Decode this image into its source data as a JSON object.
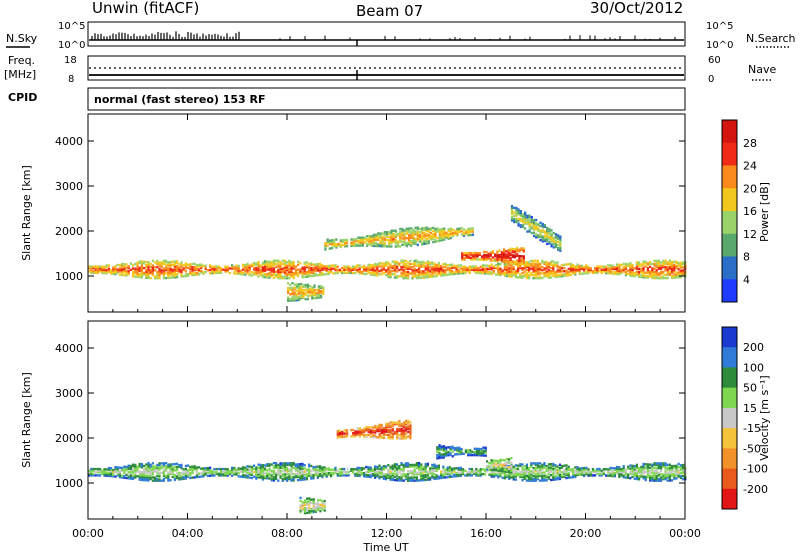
{
  "header": {
    "radar": "Unwin (fitACF)",
    "beam": "Beam 07",
    "date": "30/Oct/2012",
    "cpid_label": "CPID",
    "cpid_text": "normal (fast stereo) 153 RF"
  },
  "panels": {
    "nsky_label": "N.Sky",
    "nsearch_label": "N.Search",
    "nsky_ticks": [
      "10^5",
      "10^0"
    ],
    "nsearch_ticks": [
      "10^5",
      "10^0"
    ],
    "freq_label_1": "Freq.",
    "freq_label_2": "[MHz]",
    "freq_ticks": [
      "18",
      "8"
    ],
    "nave_label": "Nave",
    "nave_ticks": [
      "60",
      "0"
    ]
  },
  "chart_data": [
    {
      "type": "heatmap",
      "name": "power",
      "ylabel": "Slant Range [km]",
      "y_ticks": [
        "1000",
        "2000",
        "3000",
        "4000"
      ],
      "ylim": [
        200,
        4600
      ],
      "colorbar_label": "Power [dB]",
      "colorbar_ticks": [
        "4",
        "8",
        "12",
        "16",
        "20",
        "24",
        "28"
      ],
      "colors": [
        "#1e3cff",
        "#2b6ec8",
        "#5aa86c",
        "#9bd36b",
        "#f3c81e",
        "#fb8a1c",
        "#ef2a17",
        "#d4150f"
      ],
      "bands": [
        {
          "t_start": 0.0,
          "t_end": 24.0,
          "r_center_start": 1150,
          "r_center_end": 1150,
          "level": 6
        },
        {
          "t_start": 9.5,
          "t_end": 15.5,
          "r_center_start": 1700,
          "r_center_end": 2000,
          "level": 5
        },
        {
          "t_start": 15.0,
          "t_end": 17.5,
          "r_center_start": 1450,
          "r_center_end": 1450,
          "level": 7
        },
        {
          "t_start": 17.0,
          "t_end": 19.0,
          "r_center_start": 2400,
          "r_center_end": 1700,
          "level": 4
        },
        {
          "t_start": 8.0,
          "t_end": 9.5,
          "r_center_start": 650,
          "r_center_end": 650,
          "level": 5
        }
      ]
    },
    {
      "type": "heatmap",
      "name": "velocity",
      "ylabel": "Slant Range [km]",
      "y_ticks": [
        "1000",
        "2000",
        "3000",
        "4000"
      ],
      "ylim": [
        200,
        4600
      ],
      "colorbar_label": "Velocity [m s⁻¹]",
      "colorbar_ticks": [
        "200",
        "100",
        "50",
        "15",
        "-15",
        "-50",
        "-100",
        "-200"
      ],
      "colors": [
        "#1a3ad0",
        "#2f7bd6",
        "#2e8b3c",
        "#7fd651",
        "#c8c8c8",
        "#f5c33a",
        "#f0912a",
        "#ea5a1c",
        "#e21616"
      ],
      "bands": [
        {
          "t_start": 0.0,
          "t_end": 24.0,
          "r_center_start": 1250,
          "r_center_end": 1250,
          "level": 4
        },
        {
          "t_start": 10.0,
          "t_end": 13.0,
          "r_center_start": 2100,
          "r_center_end": 2200,
          "level": 8
        },
        {
          "t_start": 14.0,
          "t_end": 16.0,
          "r_center_start": 1700,
          "r_center_end": 1700,
          "level": 3
        },
        {
          "t_start": 16.0,
          "t_end": 17.0,
          "r_center_start": 1400,
          "r_center_end": 1400,
          "level": 5
        },
        {
          "t_start": 8.5,
          "t_end": 9.5,
          "r_center_start": 500,
          "r_center_end": 500,
          "level": 5
        }
      ]
    }
  ],
  "xaxis": {
    "ticks": [
      "00:00",
      "04:00",
      "08:00",
      "12:00",
      "16:00",
      "20:00",
      "00:00"
    ],
    "label": "Time UT"
  }
}
